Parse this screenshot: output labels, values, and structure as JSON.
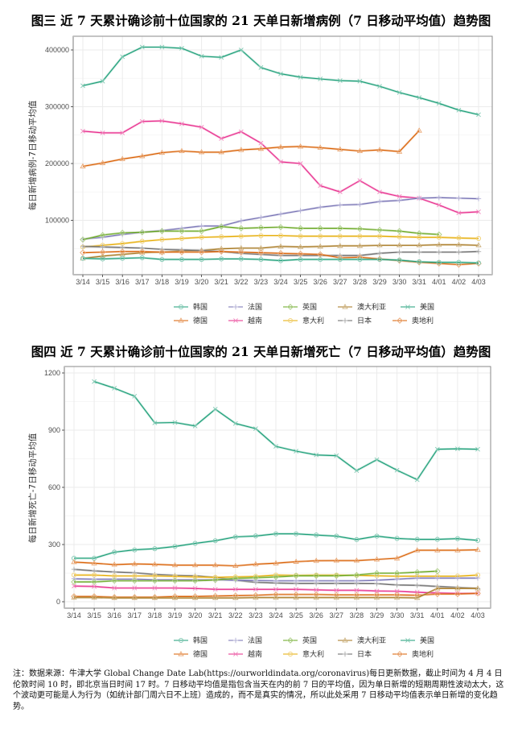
{
  "colors": {
    "韩国": "#1b9e77",
    "法国": "#7570b3",
    "英国": "#66a61e",
    "澳大利亚": "#a6761d",
    "美国": "#1b9e77",
    "德国": "#d95f02",
    "越南": "#e7298a",
    "意大利": "#e6ab02",
    "日本": "#666666",
    "奥地利": "#d95f02"
  },
  "markers": {
    "韩国": "circle",
    "法国": "plus",
    "英国": "diamond",
    "澳大利亚": "triangle",
    "美国": "cross",
    "德国": "triangle",
    "越南": "cross",
    "意大利": "circle",
    "日本": "plus",
    "奥地利": "diamond"
  },
  "legend": {
    "rows": [
      [
        "韩国",
        "法国",
        "英国",
        "澳大利亚",
        "美国"
      ],
      [
        "德国",
        "越南",
        "意大利",
        "日本",
        "奥地利"
      ]
    ]
  },
  "chart_data": [
    {
      "type": "line",
      "title": "图三  近 7 天累计确诊前十位国家的 21 天单日新增病例（7 日移动平均值）趋势图",
      "xlabel": "",
      "ylabel": "每日新增病例-7日移动平均值",
      "ylim": [
        10000,
        420000
      ],
      "yticks": [
        100000,
        200000,
        300000,
        400000
      ],
      "ytick_labels": [
        "100000",
        "200000",
        "300000",
        "400000"
      ],
      "grid": true,
      "legend_position": "bottom",
      "categories": [
        "3/14",
        "3/15",
        "3/16",
        "3/17",
        "3/18",
        "3/19",
        "3/20",
        "3/21",
        "3/22",
        "3/23",
        "3/24",
        "3/25",
        "3/26",
        "3/27",
        "3/28",
        "3/29",
        "3/30",
        "3/31",
        "4/01",
        "4/02",
        "4/03"
      ],
      "series": [
        {
          "name": "美国",
          "values": [
            337000,
            345000,
            388000,
            405000,
            405000,
            403000,
            389000,
            387000,
            400000,
            369000,
            358000,
            352000,
            349000,
            346000,
            345000,
            336000,
            325000,
            316000,
            306000,
            294000,
            286000
          ]
        },
        {
          "name": "越南",
          "values": [
            257000,
            254000,
            254000,
            274000,
            275000,
            270000,
            264000,
            244000,
            256000,
            236000,
            203000,
            200000,
            161000,
            150000,
            170000,
            150000,
            142000,
            139000,
            127000,
            113000,
            115000
          ]
        },
        {
          "name": "德国",
          "values": [
            195000,
            201000,
            208000,
            213000,
            219000,
            222000,
            220000,
            220000,
            224000,
            226000,
            229000,
            230000,
            228000,
            225000,
            222000,
            224000,
            221000,
            258000,
            null,
            null,
            null
          ]
        },
        {
          "name": "法国",
          "values": [
            67000,
            70000,
            75000,
            79000,
            82000,
            86000,
            90000,
            90000,
            99000,
            105000,
            111000,
            117000,
            123000,
            127000,
            128000,
            133000,
            135000,
            139000,
            140000,
            139000,
            138000
          ]
        },
        {
          "name": "英国",
          "values": [
            66000,
            74000,
            78000,
            79000,
            81000,
            81000,
            81000,
            89000,
            86000,
            87000,
            88000,
            86000,
            86000,
            86000,
            85000,
            83000,
            81000,
            77000,
            75000,
            null,
            null
          ]
        },
        {
          "name": "意大利",
          "values": [
            53000,
            56000,
            59000,
            63000,
            66000,
            68000,
            70000,
            71000,
            72000,
            73000,
            73000,
            72000,
            72000,
            72000,
            72000,
            72000,
            71000,
            70000,
            70000,
            69000,
            68000
          ]
        },
        {
          "name": "澳大利亚",
          "values": [
            33000,
            37000,
            40000,
            43000,
            44000,
            46000,
            47000,
            50000,
            51000,
            51000,
            54000,
            53000,
            54000,
            55000,
            55000,
            56000,
            56000,
            56000,
            57000,
            57000,
            56000
          ]
        },
        {
          "name": "日本",
          "values": [
            54000,
            53000,
            52000,
            51000,
            49000,
            48000,
            47000,
            45000,
            42000,
            40000,
            38000,
            38000,
            38000,
            38000,
            38000,
            42000,
            44000,
            44000,
            44000,
            44000,
            45000
          ]
        },
        {
          "name": "奥地利",
          "values": [
            43000,
            44000,
            45000,
            45000,
            44000,
            44000,
            44000,
            45000,
            44000,
            43000,
            42000,
            41000,
            40000,
            34000,
            35000,
            32000,
            29000,
            26000,
            24000,
            22000,
            24000
          ]
        },
        {
          "name": "韩国",
          "values": [
            33000,
            32000,
            33000,
            34000,
            31000,
            31000,
            31000,
            32000,
            32000,
            31000,
            29000,
            31000,
            31000,
            31000,
            31000,
            31000,
            30000,
            27000,
            26000,
            26000,
            25000
          ]
        }
      ]
    },
    {
      "type": "line",
      "title": "图四  近 7 天累计确诊前十位国家的 21 天单日新增死亡（7 日移动平均值）趋势图",
      "xlabel": "",
      "ylabel": "每日新增死亡-7日移动平均值",
      "ylim": [
        -40,
        1210
      ],
      "yticks": [
        0,
        300,
        600,
        900,
        1200
      ],
      "ytick_labels": [
        "0",
        "300",
        "600",
        "900",
        "1200"
      ],
      "grid": true,
      "legend_position": "bottom",
      "categories": [
        "3/14",
        "3/15",
        "3/16",
        "3/17",
        "3/18",
        "3/19",
        "3/20",
        "3/21",
        "3/22",
        "3/23",
        "3/24",
        "3/25",
        "3/26",
        "3/27",
        "3/28",
        "3/29",
        "3/30",
        "3/31",
        "4/01",
        "4/02",
        "4/03"
      ],
      "series": [
        {
          "name": "美国",
          "values": [
            null,
            1155,
            1120,
            1078,
            938,
            940,
            922,
            1010,
            935,
            908,
            815,
            790,
            770,
            766,
            688,
            745,
            690,
            640,
            800,
            802,
            800
          ]
        },
        {
          "name": "韩国",
          "values": [
            228,
            228,
            260,
            272,
            278,
            290,
            306,
            320,
            340,
            345,
            356,
            356,
            350,
            344,
            326,
            344,
            332,
            327,
            327,
            331,
            322
          ]
        },
        {
          "name": "德国",
          "values": [
            208,
            202,
            195,
            198,
            196,
            192,
            192,
            192,
            188,
            197,
            202,
            210,
            215,
            216,
            216,
            222,
            228,
            270,
            270,
            270,
            272
          ]
        },
        {
          "name": "日本",
          "values": [
            170,
            162,
            156,
            152,
            143,
            138,
            136,
            128,
            113,
            102,
            98,
            96,
            96,
            96,
            96,
            95,
            88,
            86,
            80,
            75,
            70
          ]
        },
        {
          "name": "意大利",
          "values": [
            140,
            140,
            135,
            135,
            135,
            133,
            130,
            128,
            130,
            133,
            140,
            138,
            140,
            140,
            138,
            136,
            134,
            134,
            134,
            134,
            140
          ]
        },
        {
          "name": "法国",
          "values": [
            120,
            118,
            118,
            118,
            115,
            115,
            115,
            115,
            113,
            112,
            110,
            110,
            110,
            110,
            110,
            113,
            118,
            124,
            124,
            124,
            124
          ]
        },
        {
          "name": "英国",
          "values": [
            104,
            104,
            110,
            110,
            110,
            110,
            110,
            114,
            122,
            126,
            130,
            136,
            136,
            136,
            140,
            150,
            150,
            155,
            160,
            null,
            null
          ]
        },
        {
          "name": "越南",
          "values": [
            82,
            80,
            72,
            72,
            72,
            72,
            70,
            65,
            65,
            65,
            65,
            65,
            62,
            60,
            60,
            56,
            55,
            50,
            46,
            44,
            44
          ]
        },
        {
          "name": "奥地利",
          "values": [
            28,
            28,
            24,
            24,
            24,
            28,
            28,
            30,
            32,
            34,
            38,
            38,
            38,
            36,
            36,
            36,
            36,
            34,
            40,
            40,
            44
          ]
        },
        {
          "name": "澳大利亚",
          "values": [
            22,
            22,
            20,
            20,
            20,
            20,
            20,
            20,
            20,
            22,
            22,
            22,
            22,
            22,
            22,
            22,
            22,
            20,
            70,
            70,
            70
          ]
        }
      ]
    }
  ],
  "note": "注：数据来源：牛津大学 Global Change Date Lab(https://ourworldindata.org/coronavirus)每日更新数据，截止时间为 4 月 4 日伦敦时间 10 时，即北京当日时间 17 时。7 日移动平均值是指包含当天在内的前 7 日的平均值，因为单日新增的短期周期性波动太大，这个波动更可能是人为行为（如统计部门周六日不上班）造成的，而不是真实的情况，所以此处采用 7 日移动平均值表示单日新增的变化趋势。"
}
